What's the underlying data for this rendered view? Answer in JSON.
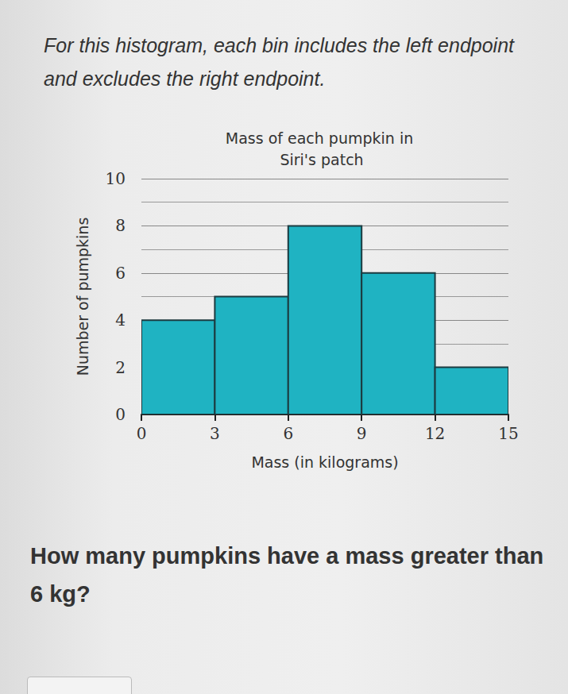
{
  "chart_data": {
    "type": "histogram",
    "intro": "For this histogram, each bin includes the left endpoint and excludes the right endpoint.",
    "title": "Mass of each pumpkin in Siri's patch",
    "x_label": "Mass (in kilograms)",
    "y_label": "Number of pumpkins",
    "question": "How many pumpkins have a mass greater than 6 kg?",
    "bins": [
      0,
      3,
      6,
      9,
      12,
      15
    ],
    "values": [
      4,
      5,
      8,
      6,
      2
    ],
    "color": "#1fb3c2",
    "xlim": [
      0,
      15
    ],
    "xticks": [
      0,
      3,
      6,
      9,
      12,
      15
    ],
    "ylim": [
      0,
      10
    ],
    "yticks": [
      0,
      2,
      4,
      6,
      8,
      10
    ],
    "grid": true
  }
}
